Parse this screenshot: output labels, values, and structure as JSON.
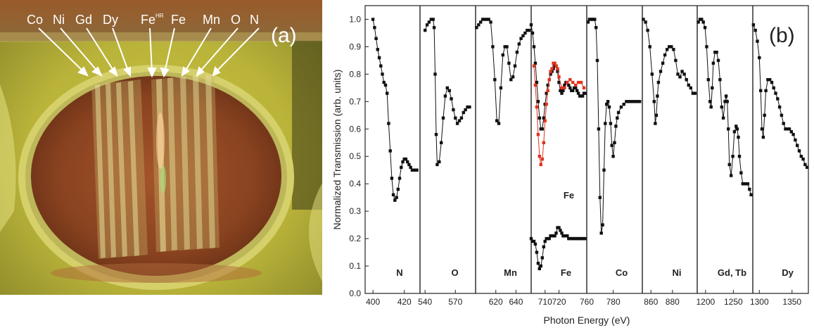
{
  "photo": {
    "panel_label": "(a)",
    "element_labels": [
      "Co",
      "Ni",
      "Gd",
      "Dy",
      "Fe",
      "Fe",
      "Mn",
      "O",
      "N"
    ],
    "fe_superscript": "HR",
    "colors": {
      "glove": "#d9d24a",
      "wafer": "#7e3e1c",
      "ring": "#c9c26a",
      "arrow": "#ffffff"
    }
  },
  "chart_data": {
    "type": "line",
    "panel_label": "(b)",
    "ylabel": "Normalized Transmission (arb. units)",
    "xlabel": "Photon Energy (eV)",
    "ylim": [
      0.0,
      1.05
    ],
    "yticks": [
      "0.0",
      "0.1",
      "0.2",
      "0.3",
      "0.4",
      "0.5",
      "0.6",
      "0.7",
      "0.8",
      "0.9",
      "1.0"
    ],
    "colors": {
      "series": "#111111",
      "fe_hr": "#e0331f"
    },
    "subplots": [
      {
        "label": "N",
        "xlim": [
          395,
          430
        ],
        "xticks": [
          "400",
          "420"
        ],
        "series": [
          {
            "x": [
              400,
              401,
              402,
              403,
              404,
              405,
              406,
              407,
              408,
              409,
              410,
              411,
              412,
              413,
              414,
              415,
              416,
              417,
              418,
              419,
              420,
              421,
              422,
              423,
              424,
              425,
              426,
              427,
              428
            ],
            "y": [
              1.0,
              0.97,
              0.93,
              0.89,
              0.86,
              0.83,
              0.8,
              0.77,
              0.76,
              0.73,
              0.62,
              0.52,
              0.42,
              0.36,
              0.34,
              0.35,
              0.38,
              0.42,
              0.46,
              0.48,
              0.49,
              0.49,
              0.48,
              0.47,
              0.46,
              0.45,
              0.45,
              0.45,
              0.45
            ]
          }
        ]
      },
      {
        "label": "O",
        "xlim": [
          535,
          590
        ],
        "xticks": [
          "540",
          "570"
        ],
        "series": [
          {
            "x": [
              540,
              542,
              544,
              546,
              548,
              549,
              550,
              551,
              552,
              554,
              556,
              558,
              560,
              562,
              564,
              566,
              568,
              570,
              572,
              574,
              576,
              578,
              580,
              582,
              584
            ],
            "y": [
              0.96,
              0.98,
              0.99,
              1.0,
              1.0,
              0.97,
              0.8,
              0.58,
              0.47,
              0.48,
              0.55,
              0.64,
              0.72,
              0.75,
              0.74,
              0.71,
              0.67,
              0.64,
              0.62,
              0.63,
              0.64,
              0.66,
              0.67,
              0.68,
              0.68
            ]
          }
        ]
      },
      {
        "label": "Mn",
        "xlim": [
          600,
          655
        ],
        "xticks": [
          "620",
          "640"
        ],
        "series": [
          {
            "x": [
              601,
              603,
              605,
              607,
              609,
              611,
              613,
              615,
              617,
              619,
              621,
              623,
              625,
              627,
              629,
              631,
              633,
              635,
              637,
              639,
              641,
              643,
              645,
              647,
              649,
              651,
              653
            ],
            "y": [
              0.97,
              0.98,
              0.99,
              1.0,
              1.0,
              1.0,
              1.0,
              0.99,
              0.9,
              0.78,
              0.63,
              0.62,
              0.75,
              0.87,
              0.9,
              0.9,
              0.84,
              0.78,
              0.79,
              0.83,
              0.88,
              0.91,
              0.93,
              0.94,
              0.95,
              0.96,
              0.96
            ]
          }
        ]
      },
      {
        "label": "Fe",
        "xlim": [
          700,
          740
        ],
        "xticks": [
          "710",
          "720"
        ],
        "series": [
          {
            "x": [
              700,
              701,
              702,
              703,
              704,
              705,
              706,
              707,
              708,
              709,
              710,
              711,
              712,
              713,
              714,
              715,
              716,
              717,
              718,
              719,
              720,
              721,
              722,
              723,
              724,
              725,
              726,
              727,
              728,
              729,
              730,
              731,
              732,
              733,
              734,
              735,
              736,
              737,
              738,
              739
            ],
            "y": [
              0.98,
              0.95,
              0.9,
              0.84,
              0.77,
              0.7,
              0.64,
              0.6,
              0.6,
              0.64,
              0.69,
              0.73,
              0.76,
              0.78,
              0.8,
              0.81,
              0.82,
              0.83,
              0.83,
              0.81,
              0.77,
              0.74,
              0.73,
              0.74,
              0.76,
              0.77,
              0.77,
              0.76,
              0.75,
              0.74,
              0.74,
              0.75,
              0.75,
              0.74,
              0.73,
              0.72,
              0.72,
              0.72,
              0.73,
              0.73
            ]
          },
          {
            "name": "HR",
            "color": "red",
            "x": [
              702,
              703,
              704,
              705,
              706,
              707,
              708,
              709,
              710,
              711,
              712,
              713,
              714,
              715,
              716,
              717,
              718,
              719,
              720,
              722,
              724,
              726,
              728,
              730,
              732,
              734,
              736,
              738
            ],
            "y": [
              0.83,
              0.76,
              0.68,
              0.58,
              0.5,
              0.47,
              0.49,
              0.55,
              0.63,
              0.69,
              0.74,
              0.78,
              0.81,
              0.82,
              0.84,
              0.84,
              0.83,
              0.82,
              0.79,
              0.75,
              0.75,
              0.77,
              0.78,
              0.77,
              0.76,
              0.77,
              0.77,
              0.75
            ]
          },
          {
            "x": [
              700,
              701,
              702,
              703,
              704,
              705,
              706,
              707,
              708,
              709,
              710,
              711,
              712,
              713,
              714,
              715,
              716,
              717,
              718,
              719,
              720,
              721,
              722,
              723,
              724,
              725,
              726,
              727,
              728,
              729,
              730,
              731,
              732,
              733,
              734,
              735,
              736,
              737,
              738,
              739
            ],
            "y": [
              0.2,
              0.19,
              0.19,
              0.18,
              0.15,
              0.11,
              0.09,
              0.1,
              0.13,
              0.17,
              0.19,
              0.2,
              0.2,
              0.2,
              0.21,
              0.21,
              0.21,
              0.21,
              0.22,
              0.24,
              0.24,
              0.23,
              0.22,
              0.21,
              0.21,
              0.21,
              0.21,
              0.2,
              0.2,
              0.2,
              0.2,
              0.2,
              0.2,
              0.2,
              0.2,
              0.2,
              0.2,
              0.2,
              0.2,
              0.2
            ]
          }
        ],
        "inner_label": "Fe"
      },
      {
        "label": "Co",
        "xlim": [
          760,
          802
        ],
        "xticks": [
          "760",
          "780"
        ],
        "series": [
          {
            "x": [
              761,
              762,
              763,
              764,
              765,
              766,
              767,
              768,
              769,
              770,
              771,
              772,
              773,
              774,
              775,
              776,
              777,
              778,
              779,
              780,
              781,
              782,
              783,
              784,
              786,
              788,
              790,
              792,
              794,
              796,
              798,
              800
            ],
            "y": [
              0.99,
              1.0,
              1.0,
              1.0,
              1.0,
              1.0,
              0.97,
              0.85,
              0.6,
              0.35,
              0.22,
              0.25,
              0.45,
              0.62,
              0.69,
              0.7,
              0.68,
              0.62,
              0.54,
              0.5,
              0.55,
              0.61,
              0.64,
              0.66,
              0.68,
              0.69,
              0.7,
              0.7,
              0.7,
              0.7,
              0.7,
              0.7
            ]
          }
        ]
      },
      {
        "label": "Ni",
        "xlim": [
          852,
          903
        ],
        "xticks": [
          "860",
          "880"
        ],
        "series": [
          {
            "x": [
              853,
              855,
              857,
              859,
              861,
              863,
              864,
              865,
              866,
              867,
              869,
              871,
              873,
              875,
              877,
              879,
              881,
              883,
              885,
              887,
              889,
              891,
              893,
              895,
              897,
              899,
              901
            ],
            "y": [
              1.0,
              0.99,
              0.96,
              0.9,
              0.8,
              0.7,
              0.62,
              0.65,
              0.72,
              0.77,
              0.81,
              0.84,
              0.87,
              0.89,
              0.9,
              0.9,
              0.89,
              0.85,
              0.8,
              0.79,
              0.81,
              0.8,
              0.78,
              0.76,
              0.75,
              0.73,
              0.73
            ]
          }
        ]
      },
      {
        "label": "Gd, Tb",
        "xlim": [
          1185,
          1285
        ],
        "xticks": [
          "1200",
          "1250"
        ],
        "series": [
          {
            "x": [
              1187,
              1190,
              1193,
              1196,
              1199,
              1202,
              1205,
              1208,
              1210,
              1212,
              1214,
              1217,
              1220,
              1223,
              1226,
              1229,
              1232,
              1235,
              1237,
              1239,
              1241,
              1243,
              1246,
              1249,
              1252,
              1255,
              1257,
              1259,
              1261,
              1264,
              1267,
              1270,
              1273,
              1276,
              1279,
              1282
            ],
            "y": [
              0.99,
              1.0,
              1.0,
              0.99,
              0.97,
              0.9,
              0.78,
              0.7,
              0.68,
              0.75,
              0.84,
              0.88,
              0.88,
              0.85,
              0.78,
              0.68,
              0.64,
              0.7,
              0.72,
              0.7,
              0.6,
              0.47,
              0.43,
              0.5,
              0.59,
              0.61,
              0.6,
              0.57,
              0.5,
              0.44,
              0.4,
              0.4,
              0.4,
              0.4,
              0.38,
              0.36
            ]
          }
        ]
      },
      {
        "label": "Dy",
        "xlim": [
          1290,
          1375
        ],
        "xticks": [
          "1300",
          "1350"
        ],
        "series": [
          {
            "x": [
              1291,
              1294,
              1297,
              1300,
              1302,
              1304,
              1306,
              1308,
              1310,
              1313,
              1316,
              1319,
              1322,
              1325,
              1328,
              1331,
              1334,
              1337,
              1340,
              1343,
              1346,
              1349,
              1352,
              1355,
              1358,
              1361,
              1364,
              1367,
              1370,
              1373
            ],
            "y": [
              0.98,
              0.96,
              0.92,
              0.86,
              0.74,
              0.6,
              0.57,
              0.65,
              0.74,
              0.78,
              0.78,
              0.77,
              0.75,
              0.73,
              0.71,
              0.68,
              0.65,
              0.62,
              0.6,
              0.6,
              0.6,
              0.59,
              0.58,
              0.56,
              0.54,
              0.52,
              0.5,
              0.49,
              0.47,
              0.46
            ]
          }
        ]
      }
    ]
  }
}
